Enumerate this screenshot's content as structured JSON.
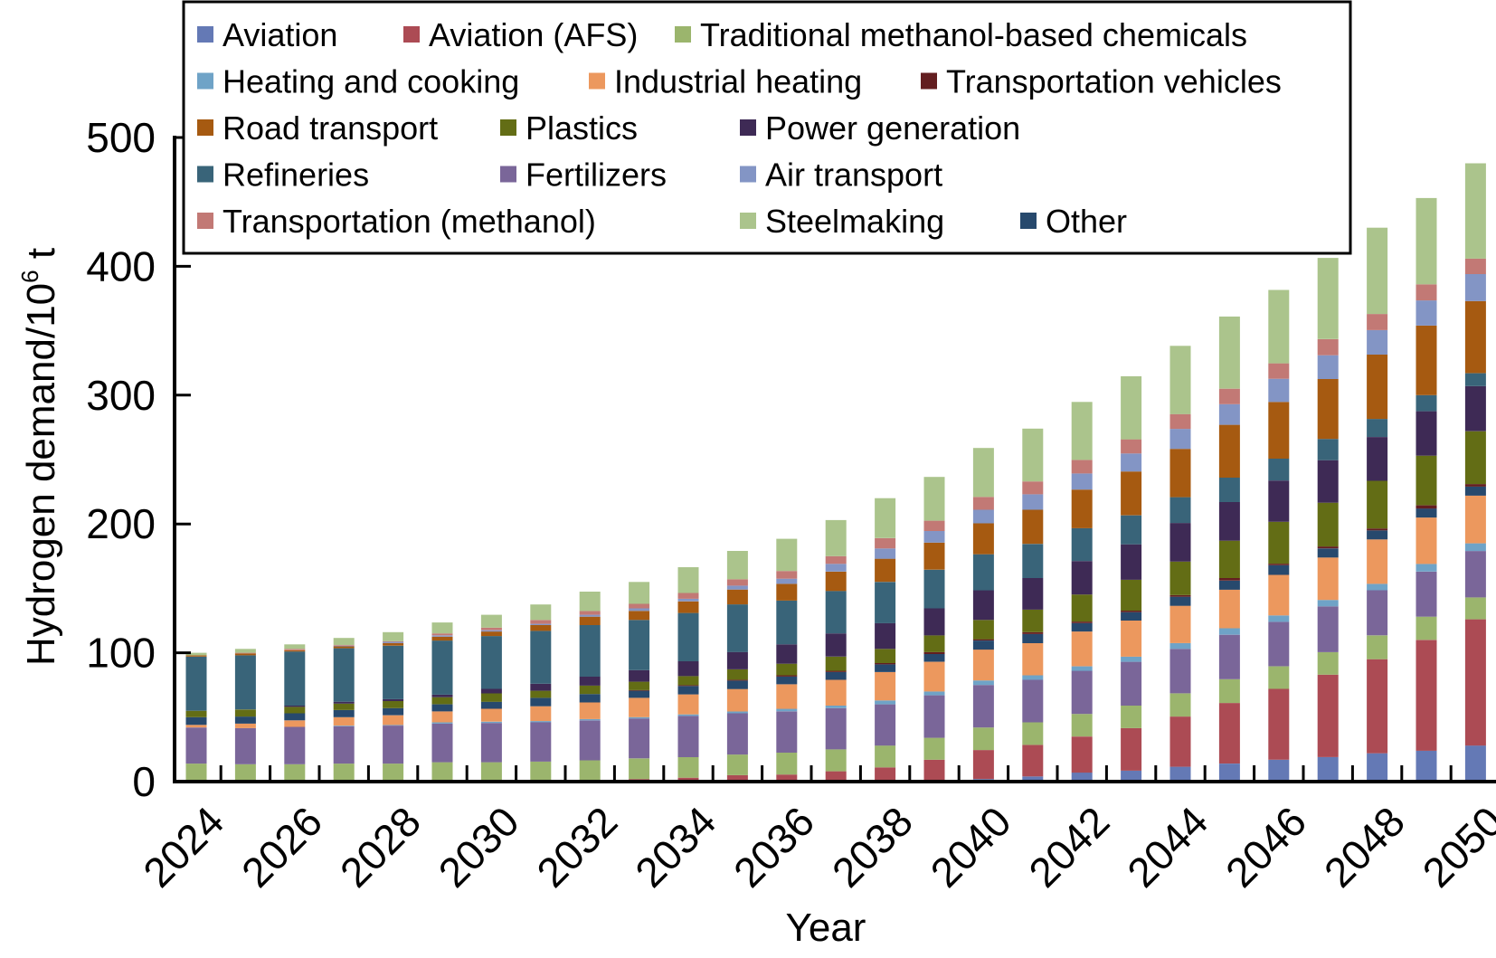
{
  "chart_data": {
    "type": "bar",
    "stacked": true,
    "title": "",
    "xlabel": "Year",
    "ylabel": "Hydrogen demand/10^6 t",
    "ylabel_main": "Hydrogen demand/10",
    "ylabel_sup": "6",
    "ylabel_tail": " t",
    "ylim": [
      0,
      500
    ],
    "yticks": [
      0,
      100,
      200,
      300,
      400,
      500
    ],
    "grid": false,
    "legend_position": "top-center",
    "categories": [
      "2024",
      "2025",
      "2026",
      "2027",
      "2028",
      "2029",
      "2030",
      "2031",
      "2032",
      "2033",
      "2034",
      "2035",
      "2036",
      "2037",
      "2038",
      "2039",
      "2040",
      "2041",
      "2042",
      "2043",
      "2044",
      "2045",
      "2046",
      "2047",
      "2048",
      "2049",
      "2050"
    ],
    "xtick_labels": [
      "2024",
      "2026",
      "2028",
      "2030",
      "2032",
      "2034",
      "2036",
      "2038",
      "2040",
      "2042",
      "2044",
      "2046",
      "2048",
      "2050"
    ],
    "legend_order": [
      "Aviation",
      "Aviation (AFS)",
      "Traditional methanol-based chemicals",
      "Heating and cooking",
      "Industrial heating",
      "Transportation vehicles",
      "Road transport",
      "Plastics",
      "Power generation",
      "Refineries",
      "Fertilizers",
      "Air transport",
      "Transportation (methanol)",
      "Steelmaking",
      "Other"
    ],
    "series": [
      {
        "name": "Aviation",
        "color": "#6479b5",
        "values": [
          0,
          0,
          0,
          0,
          0,
          0,
          0,
          0,
          0,
          0,
          0,
          0,
          0,
          0,
          0,
          1,
          2,
          4,
          7,
          8.5,
          11.5,
          14,
          17,
          19,
          22,
          24,
          28
        ]
      },
      {
        "name": "Aviation (AFS)",
        "color": "#ac4b54",
        "values": [
          0,
          0,
          0,
          0,
          0,
          0,
          0,
          0,
          1,
          2,
          3,
          5,
          5.5,
          8,
          11,
          16,
          22.5,
          24.5,
          28,
          33,
          39,
          47,
          55,
          64,
          73,
          86,
          98
        ]
      },
      {
        "name": "Traditional methanol-based chemicals",
        "color": "#9bb56d",
        "values": [
          14,
          13.5,
          13.5,
          14,
          14,
          15,
          15,
          15.5,
          15.5,
          16,
          16,
          16,
          17,
          17,
          17,
          17,
          17.5,
          17.5,
          17.5,
          17.5,
          18,
          18.5,
          17.5,
          17.5,
          18.5,
          18,
          17
        ]
      },
      {
        "name": "Fertilizers",
        "color": "#7a6699",
        "values": [
          28,
          28,
          29,
          29,
          29.5,
          30,
          30.5,
          30.5,
          31,
          31,
          32,
          32,
          32,
          32,
          32,
          33,
          33,
          33,
          33.5,
          34,
          34.5,
          34.5,
          34.5,
          35.5,
          35,
          35,
          36
        ]
      },
      {
        "name": "Heating and cooking",
        "color": "#6fa3c7",
        "values": [
          0,
          0,
          0,
          0.5,
          0.5,
          1,
          1,
          1,
          1,
          1,
          1.2,
          1.4,
          2,
          2,
          3,
          3,
          3.5,
          3.5,
          3.5,
          4,
          4.5,
          5,
          5,
          5,
          5,
          6,
          6
        ]
      },
      {
        "name": "Industrial heating",
        "color": "#ec985e",
        "values": [
          2,
          3.5,
          5,
          6.5,
          7.5,
          8.5,
          10,
          11.5,
          13,
          15,
          15.5,
          17.5,
          19,
          20,
          22,
          23,
          24,
          25,
          27,
          28,
          29,
          30,
          31.5,
          33,
          34.5,
          36,
          37
        ]
      },
      {
        "name": "Other",
        "color": "#27496d",
        "values": [
          6,
          5.5,
          5.5,
          5.5,
          5.5,
          5.5,
          5.5,
          6.5,
          6.5,
          5.5,
          6.5,
          6.5,
          6,
          6,
          6,
          6,
          7,
          7,
          6.5,
          6.5,
          7,
          7,
          7.5,
          7,
          7,
          7,
          7
        ]
      },
      {
        "name": "Transportation vehicles",
        "color": "#631e20",
        "values": [
          0,
          0,
          0,
          0,
          0,
          0,
          0,
          0,
          0,
          0.5,
          0.7,
          0.7,
          1,
          1,
          1,
          1.5,
          1,
          1.5,
          1.2,
          1.2,
          1.3,
          2,
          1.2,
          1.5,
          1.5,
          2.5,
          2
        ]
      },
      {
        "name": "Plastics",
        "color": "#636d15",
        "values": [
          5,
          5.5,
          5,
          5,
          5.5,
          5.5,
          6.5,
          5.5,
          6.5,
          6.5,
          7,
          8,
          9,
          11,
          11,
          13,
          15,
          17.5,
          21,
          24,
          26,
          29,
          32.5,
          34,
          37,
          38.5,
          41
        ]
      },
      {
        "name": "Power generation",
        "color": "#3e2a55",
        "values": [
          0,
          0,
          1,
          1.5,
          1.5,
          2,
          3.5,
          5.5,
          7,
          9,
          11.5,
          13.5,
          15,
          18,
          20,
          21,
          23,
          24.5,
          26,
          27.5,
          30,
          30,
          32,
          33,
          34,
          34.5,
          35
        ]
      },
      {
        "name": "Refineries",
        "color": "#396479",
        "values": [
          42,
          42,
          42,
          41.5,
          41.5,
          42,
          41,
          41,
          40,
          39,
          37.5,
          37,
          34,
          33,
          32,
          30,
          28,
          26.5,
          25.5,
          22.5,
          20,
          19,
          17,
          16.5,
          14,
          12.5,
          10
        ]
      },
      {
        "name": "Road transport",
        "color": "#a65a11",
        "values": [
          1,
          1.5,
          1,
          1.5,
          2,
          3,
          3.5,
          4.5,
          6.5,
          7,
          9,
          11.5,
          13,
          15,
          18,
          21,
          24,
          26.5,
          30,
          34,
          37.5,
          41,
          44,
          46.5,
          50,
          54,
          56
        ]
      },
      {
        "name": "Air transport",
        "color": "#8395c5",
        "values": [
          0,
          0,
          0,
          0.5,
          1,
          1,
          1,
          1,
          1.5,
          2,
          2,
          3,
          4,
          6,
          8,
          9,
          10.5,
          12,
          12.5,
          14,
          15.5,
          16,
          18,
          18.5,
          19,
          19.5,
          21
        ]
      },
      {
        "name": "Transportation (methanol)",
        "color": "#c27975",
        "values": [
          0,
          0.5,
          1,
          0.5,
          0.5,
          1.5,
          2,
          3,
          3,
          3.5,
          4.5,
          5,
          6,
          6,
          8,
          8,
          10,
          10,
          10.5,
          11,
          11.5,
          12,
          12,
          12.5,
          12.5,
          12.5,
          12
        ]
      },
      {
        "name": "Steelmaking",
        "color": "#abc48c",
        "values": [
          2,
          3,
          3.5,
          5.5,
          7,
          8.5,
          10,
          12,
          15,
          17,
          20,
          22,
          25,
          28,
          31,
          34,
          38,
          41,
          45,
          49,
          53,
          56,
          57,
          63,
          67,
          67,
          74
        ]
      }
    ]
  }
}
